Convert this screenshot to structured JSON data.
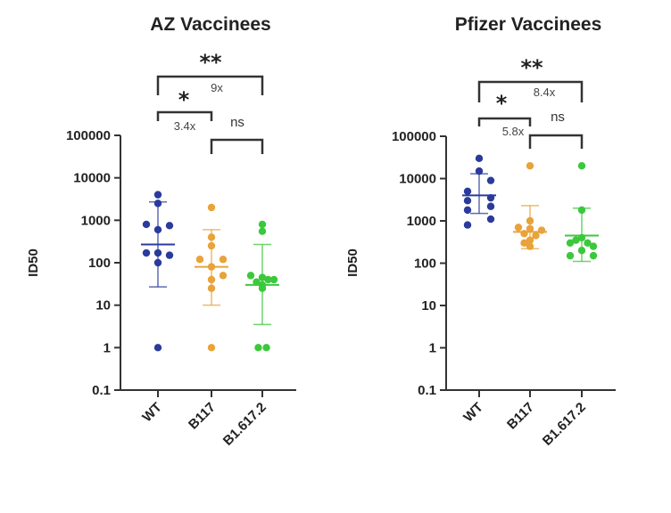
{
  "chart_data": [
    {
      "type": "scatter",
      "title": "AZ Vaccinees",
      "xlabel": "",
      "ylabel": "ID50",
      "yscale": "log",
      "ylim": [
        0.1,
        100000
      ],
      "yticks": [
        "100000",
        "10000",
        "1000",
        "100",
        "10",
        "1",
        "0.1"
      ],
      "ytick_values": [
        100000,
        10000,
        1000,
        100,
        10,
        1,
        0.1
      ],
      "categories": [
        "WT",
        "B117",
        "B1.617.2"
      ],
      "grid": false,
      "series": [
        {
          "name": "WT",
          "color": "#2b3b9c",
          "mean": 270,
          "err_low": 27,
          "err_high": 2700,
          "values": [
            4000,
            2500,
            800,
            600,
            750,
            170,
            170,
            150,
            100,
            1
          ],
          "offsets": [
            0,
            0,
            -1,
            0,
            1,
            -1,
            0,
            1,
            0,
            0
          ]
        },
        {
          "name": "B117",
          "color": "#e8a33a",
          "mean": 80,
          "err_low": 10,
          "err_high": 600,
          "values": [
            2000,
            400,
            250,
            120,
            120,
            80,
            50,
            40,
            25,
            1
          ],
          "offsets": [
            0,
            0,
            0,
            -1,
            1,
            0,
            1,
            0,
            0,
            0
          ]
        },
        {
          "name": "B1.617.2",
          "color": "#3cc83c",
          "mean": 30,
          "err_low": 3.5,
          "err_high": 270,
          "values": [
            800,
            550,
            50,
            45,
            40,
            40,
            35,
            30,
            25,
            1,
            1
          ],
          "offsets": [
            0,
            0,
            -1,
            0,
            0.5,
            1,
            -0.5,
            0,
            0,
            -0.35,
            0.35
          ]
        }
      ],
      "annotations": [
        {
          "type": "bracket",
          "from": "WT",
          "to": "B1.617.2",
          "level": "outer",
          "significance": "**",
          "fold": "9x"
        },
        {
          "type": "bracket",
          "from": "WT",
          "to": "B117",
          "level": "inner",
          "significance": "*",
          "fold": "3.4x"
        },
        {
          "type": "bracket",
          "from": "B117",
          "to": "B1.617.2",
          "level": "low",
          "significance": "ns",
          "fold": ""
        }
      ]
    },
    {
      "type": "scatter",
      "title": "Pfizer Vaccinees",
      "xlabel": "",
      "ylabel": "ID50",
      "yscale": "log",
      "ylim": [
        0.1,
        100000
      ],
      "yticks": [
        "100000",
        "10000",
        "1000",
        "100",
        "10",
        "1",
        "0.1"
      ],
      "ytick_values": [
        100000,
        10000,
        1000,
        100,
        10,
        1,
        0.1
      ],
      "categories": [
        "WT",
        "B117",
        "B1.617.2"
      ],
      "grid": false,
      "series": [
        {
          "name": "WT",
          "color": "#2b3b9c",
          "mean": 4000,
          "err_low": 1500,
          "err_high": 13000,
          "values": [
            30000,
            15000,
            9000,
            5000,
            3500,
            3000,
            2200,
            1800,
            1100,
            800
          ],
          "offsets": [
            0,
            0,
            1,
            -1,
            1,
            -1,
            1,
            -1,
            1,
            -1
          ]
        },
        {
          "name": "B117",
          "color": "#e8a33a",
          "mean": 550,
          "err_low": 220,
          "err_high": 2300,
          "values": [
            20000,
            1000,
            700,
            650,
            600,
            500,
            450,
            350,
            300,
            250
          ],
          "offsets": [
            0,
            0,
            -1,
            0,
            1,
            -0.5,
            0.5,
            0,
            -0.5,
            0
          ]
        },
        {
          "name": "B1.617.2",
          "color": "#3cc83c",
          "mean": 450,
          "err_low": 110,
          "err_high": 2000,
          "values": [
            20000,
            1800,
            400,
            350,
            300,
            300,
            250,
            200,
            150,
            150
          ],
          "offsets": [
            0,
            0,
            0,
            -0.5,
            0.5,
            -1,
            1,
            0,
            -1,
            1
          ]
        }
      ],
      "annotations": [
        {
          "type": "bracket",
          "from": "WT",
          "to": "B1.617.2",
          "level": "outer",
          "significance": "**",
          "fold": "8.4x"
        },
        {
          "type": "bracket",
          "from": "WT",
          "to": "B117",
          "level": "inner",
          "significance": "*",
          "fold": "5.8x"
        },
        {
          "type": "bracket",
          "from": "B117",
          "to": "B1.617.2",
          "level": "low",
          "significance": "ns",
          "fold": ""
        }
      ]
    }
  ]
}
